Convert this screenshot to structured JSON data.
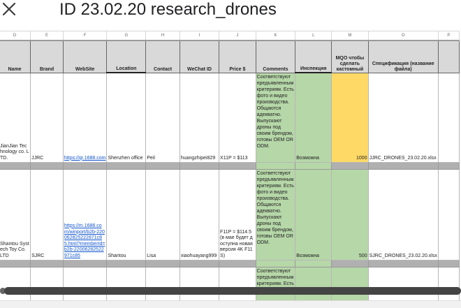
{
  "window": {
    "title": "ID 23.02.20 research_drones",
    "close_icon": "close-icon"
  },
  "sheet": {
    "column_letters": [
      "D",
      "E",
      "F",
      "G",
      "H",
      "I",
      "J",
      "K",
      "L",
      "M",
      "O",
      "P"
    ],
    "headers": {
      "name": "Name",
      "brand": "Brand",
      "website": "WebSite",
      "location": "Location",
      "contact": "Contact",
      "wechat": "WeChat ID",
      "price": "Price $",
      "comments": "Comments",
      "inspection": "Инспекция",
      "moq": "MQO чтобы сделать кастомный",
      "spec": "Спецификация (название файла)"
    },
    "rows": [
      {
        "name": "JianJian Technology co. LTD.",
        "brand": "JJRC",
        "website": "https://qr.1688.com",
        "location": "Shenzhen office",
        "contact": "Peil",
        "wechat": "huangzhipei829",
        "price": "X11P = $113",
        "comments": "Соответствуют предъявленным критериям. Есть фото и видео производства. Общаются адекватно. Выпускают дроны под своим брендом, готовы OEM OR ODM.",
        "inspection": "Возможна",
        "moq": "1000",
        "spec": "JJRC_DRONES_23.02.20.xlsx"
      },
      {
        "name": "Shantou Systech Toy Co. LTD",
        "brand": "SJRC",
        "website": "https://m.1688.com/winport/b2b-220062825222871c85.html?memberId=b2b-22006282522971c85",
        "location": "Shantou",
        "contact": "Lisa",
        "wechat": "xiaohuayang999",
        "price": "F11P = $114.5 (в мае будет доступна новая версия 4K F11S)",
        "comments": "Соответствуют предъявленным критериям. Есть фото и видео производства. Общаются адекватно. Выпускают дроны под своим брендом, готовы OEM OR ODM.",
        "inspection": "Возможна",
        "moq": "500",
        "spec": "SJRC_DRONES_23.02.20.xlsx"
      },
      {
        "comments": "Соответствуют предъявленным критериям. Есть фото и видео"
      }
    ]
  }
}
